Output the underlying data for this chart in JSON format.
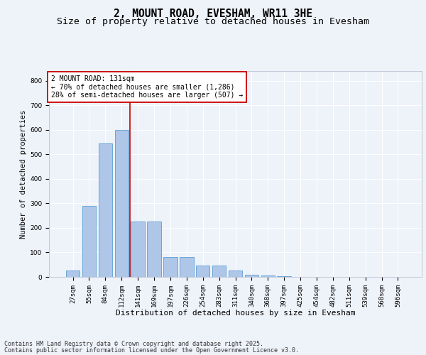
{
  "title1": "2, MOUNT ROAD, EVESHAM, WR11 3HE",
  "title2": "Size of property relative to detached houses in Evesham",
  "xlabel": "Distribution of detached houses by size in Evesham",
  "ylabel": "Number of detached properties",
  "footer1": "Contains HM Land Registry data © Crown copyright and database right 2025.",
  "footer2": "Contains public sector information licensed under the Open Government Licence v3.0.",
  "categories": [
    "27sqm",
    "55sqm",
    "84sqm",
    "112sqm",
    "141sqm",
    "169sqm",
    "197sqm",
    "226sqm",
    "254sqm",
    "283sqm",
    "311sqm",
    "340sqm",
    "368sqm",
    "397sqm",
    "425sqm",
    "454sqm",
    "482sqm",
    "511sqm",
    "539sqm",
    "568sqm",
    "596sqm"
  ],
  "values": [
    25,
    290,
    545,
    600,
    225,
    225,
    80,
    80,
    45,
    45,
    25,
    10,
    5,
    2,
    1,
    1,
    0,
    0,
    0,
    0,
    0
  ],
  "bar_color": "#aec6e8",
  "bar_edge_color": "#5a9fd4",
  "vline_pos": 3.5,
  "vline_color": "#cc0000",
  "annotation_text": "2 MOUNT ROAD: 131sqm\n← 70% of detached houses are smaller (1,286)\n28% of semi-detached houses are larger (507) →",
  "annotation_box_color": "#ffffff",
  "annotation_box_edge": "#cc0000",
  "bg_color": "#eef2f9",
  "plot_bg_color": "#eef2f9",
  "ylim": [
    0,
    840
  ],
  "yticks": [
    0,
    100,
    200,
    300,
    400,
    500,
    600,
    700,
    800
  ],
  "grid_color": "#ffffff",
  "title1_fontsize": 10.5,
  "title2_fontsize": 9.5,
  "xlabel_fontsize": 8,
  "ylabel_fontsize": 7.5,
  "tick_fontsize": 6.5,
  "ann_fontsize": 7.0,
  "footer_fontsize": 6.0
}
